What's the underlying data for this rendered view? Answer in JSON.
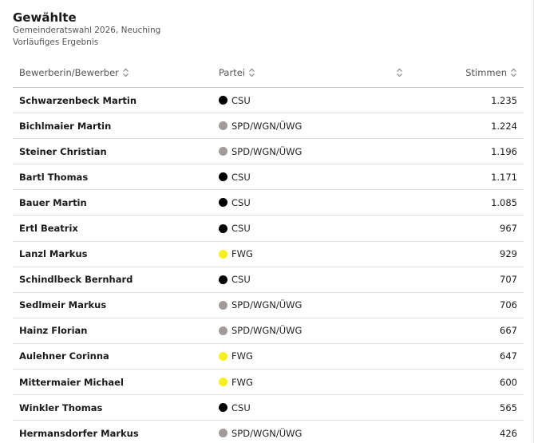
{
  "header": {
    "title": "Gewählte",
    "subtitle_1": "Gemeinderatswahl 2026, Neuching",
    "subtitle_2": "Vorläufiges Ergebnis"
  },
  "table": {
    "columns": {
      "name": "Bewerberin/Bewerber",
      "party": "Partei",
      "votes": "Stimmen"
    },
    "party_colors": {
      "CSU": "#000000",
      "SPD/WGN/ÜWG": "#a39a9a",
      "FWG": "#f5f01e"
    },
    "rows": [
      {
        "name": "Schwarzenbeck Martin",
        "party": "CSU",
        "votes": "1.235"
      },
      {
        "name": "Bichlmaier Martin",
        "party": "SPD/WGN/ÜWG",
        "votes": "1.224"
      },
      {
        "name": "Steiner Christian",
        "party": "SPD/WGN/ÜWG",
        "votes": "1.196"
      },
      {
        "name": "Bartl Thomas",
        "party": "CSU",
        "votes": "1.171"
      },
      {
        "name": "Bauer Martin",
        "party": "CSU",
        "votes": "1.085"
      },
      {
        "name": "Ertl Beatrix",
        "party": "CSU",
        "votes": "967"
      },
      {
        "name": "Lanzl Markus",
        "party": "FWG",
        "votes": "929"
      },
      {
        "name": "Schindlbeck Bernhard",
        "party": "CSU",
        "votes": "707"
      },
      {
        "name": "Sedlmeir Markus",
        "party": "SPD/WGN/ÜWG",
        "votes": "706"
      },
      {
        "name": "Hainz Florian",
        "party": "SPD/WGN/ÜWG",
        "votes": "667"
      },
      {
        "name": "Aulehner Corinna",
        "party": "FWG",
        "votes": "647"
      },
      {
        "name": "Mittermaier Michael",
        "party": "FWG",
        "votes": "600"
      },
      {
        "name": "Winkler Thomas",
        "party": "CSU",
        "votes": "565"
      },
      {
        "name": "Hermansdorfer Markus",
        "party": "SPD/WGN/ÜWG",
        "votes": "426"
      }
    ]
  },
  "icons": {
    "sort": "sort-updown-icon"
  }
}
